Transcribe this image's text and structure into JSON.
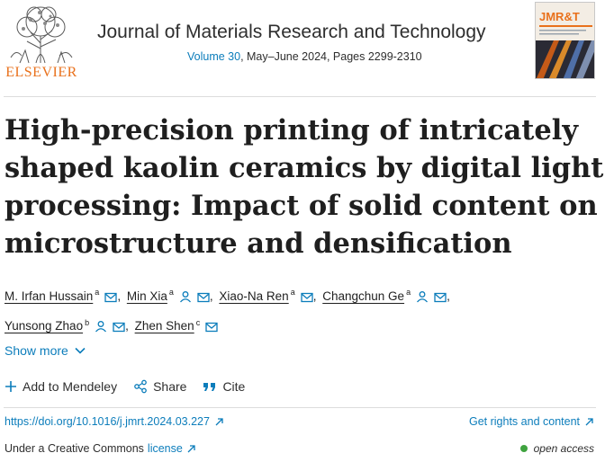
{
  "publisher": {
    "name": "ELSEVIER"
  },
  "journal": {
    "title": "Journal of Materials Research and Technology",
    "volume_link": "Volume 30",
    "issue_pages": ", May–June 2024, Pages 2299-2310",
    "cover_abbrev": "JMR&T",
    "cover_subtitle": "JOURNAL OF MATERIALS RESEARCH AND TECHNOLOGY"
  },
  "article": {
    "title": "High-precision printing of intricately shaped kaolin ceramics by digital light processing: Impact of solid content on microstructure and densification"
  },
  "authors": [
    {
      "name": "M. Irfan Hussain",
      "aff": "a",
      "person_icon": false
    },
    {
      "name": "Min Xia",
      "aff": "a",
      "person_icon": true
    },
    {
      "name": "Xiao-Na Ren",
      "aff": "a",
      "person_icon": false
    },
    {
      "name": "Changchun Ge",
      "aff": "a",
      "person_icon": true
    },
    {
      "name": "Yunsong Zhao",
      "aff": "b",
      "person_icon": true
    },
    {
      "name": "Zhen Shen",
      "aff": "c",
      "person_icon": false
    }
  ],
  "show_more": "Show more",
  "actions": {
    "mendeley": "Add to Mendeley",
    "share": "Share",
    "cite": "Cite"
  },
  "doi": "https://doi.org/10.1016/j.jmrt.2024.03.227",
  "rights": "Get rights and content",
  "license": {
    "prefix": "Under a Creative Commons",
    "link": "license"
  },
  "access": "open access",
  "colors": {
    "link": "#0c7dbb",
    "brand": "#e9711c",
    "open_access": "#3fa33f"
  },
  "icons": [
    "elsevier-tree-logo",
    "person-icon",
    "envelope-icon",
    "chevron-down-icon",
    "plus-icon",
    "share-icon",
    "quote-icon",
    "external-arrow-icon"
  ]
}
